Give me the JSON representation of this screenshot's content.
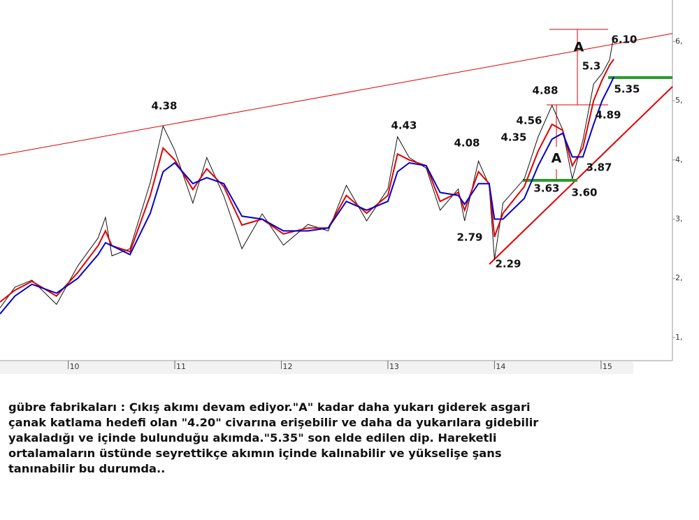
{
  "chart_data": {
    "type": "line",
    "x": [
      9.36,
      9.5,
      9.66,
      9.89,
      10.09,
      10.28,
      10.35,
      10.41,
      10.58,
      10.77,
      10.89,
      11.0,
      11.17,
      11.3,
      11.46,
      11.63,
      11.82,
      12.02,
      12.25,
      12.44,
      12.61,
      12.8,
      13.0,
      13.09,
      13.2,
      13.36,
      13.49,
      13.66,
      13.72,
      13.85,
      13.95,
      14.0,
      14.08,
      14.28,
      14.41,
      14.54,
      14.64,
      14.73,
      14.83,
      14.93,
      15.01,
      15.08,
      15.12
    ],
    "series": [
      {
        "color": "#111111",
        "values": [
          1.5,
          1.85,
          1.97,
          1.56,
          2.21,
          2.68,
          3.03,
          2.38,
          2.5,
          3.62,
          4.57,
          4.16,
          3.27,
          4.04,
          3.39,
          2.5,
          3.09,
          2.56,
          2.91,
          2.8,
          3.57,
          2.97,
          3.51,
          4.39,
          4.04,
          3.86,
          3.15,
          3.51,
          2.97,
          3.98,
          3.57,
          2.32,
          3.27,
          3.68,
          4.39,
          4.92,
          4.51,
          3.68,
          4.33,
          5.28,
          5.46,
          5.69,
          6.1
        ]
      },
      {
        "color": "#e00000",
        "values": [
          1.6,
          1.8,
          1.95,
          1.7,
          2.1,
          2.55,
          2.8,
          2.55,
          2.45,
          3.4,
          4.2,
          4.0,
          3.5,
          3.85,
          3.55,
          2.9,
          3.0,
          2.75,
          2.85,
          2.85,
          3.4,
          3.1,
          3.4,
          4.1,
          4.0,
          3.9,
          3.3,
          3.45,
          3.15,
          3.8,
          3.6,
          2.7,
          3.1,
          3.55,
          4.15,
          4.6,
          4.5,
          3.9,
          4.2,
          5.0,
          5.35,
          5.6,
          5.7
        ]
      },
      {
        "color": "#0000cc",
        "values": [
          1.4,
          1.7,
          1.9,
          1.75,
          2.0,
          2.4,
          2.6,
          2.55,
          2.4,
          3.1,
          3.8,
          3.95,
          3.6,
          3.7,
          3.6,
          3.05,
          3.0,
          2.8,
          2.8,
          2.85,
          3.3,
          3.15,
          3.3,
          3.8,
          3.95,
          3.9,
          3.45,
          3.4,
          3.25,
          3.6,
          3.6,
          3.0,
          3.0,
          3.35,
          3.9,
          4.35,
          4.45,
          4.05,
          4.05,
          4.6,
          5.0,
          5.25,
          5.4
        ]
      }
    ],
    "xlim": [
      9.36,
      15.67
    ],
    "ylim": [
      0.61,
      6.7
    ],
    "xticks": [
      10,
      11,
      12,
      13,
      14,
      15
    ],
    "yticks": [
      {
        "value": 1,
        "label": "1,"
      },
      {
        "value": 2,
        "label": "2,"
      },
      {
        "value": 3,
        "label": "3,"
      },
      {
        "value": 4,
        "label": "4,"
      },
      {
        "value": 5,
        "label": "5,"
      },
      {
        "value": 6,
        "label": "6,"
      }
    ],
    "annotations": [
      "4.38",
      "4.43",
      "4.08",
      "2.79",
      "2.29",
      "4.35",
      "4.56",
      "4.88",
      "A",
      "5.3",
      "6.10",
      "5.35",
      "4.89",
      "A",
      "3.87",
      "3.63",
      "3.60"
    ]
  },
  "caption": [
    "gübre fabrikaları : Çıkış akımı devam ediyor.\"A\" kadar daha yukarı giderek asgari",
    "çanak katlama hedefi olan \"4.20\" civarına erişebilir ve daha da yukarılara gidebilir",
    "yakaladığı ve içinde bulunduğu akımda.\"5.35\" son elde edilen dip. Hareketli",
    "ortalamaların üstünde seyrettikçe akımın içinde kalınabilir ve yükselişe şans",
    "tanınabilir bu durumda.."
  ]
}
